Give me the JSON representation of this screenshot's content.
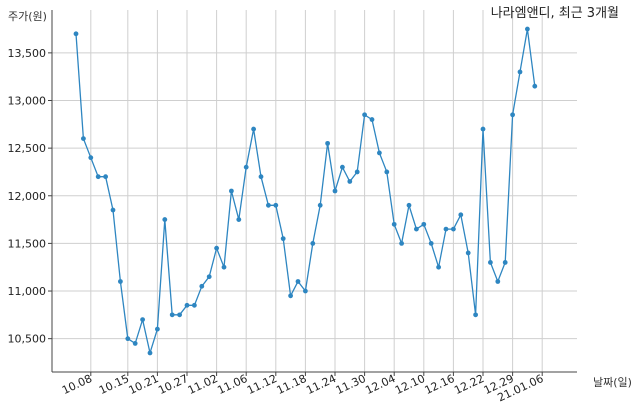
{
  "chart_data": {
    "type": "line",
    "title": "나라엠앤디, 최근 3개월",
    "ylabel": "주가(원)",
    "xlabel": "날짜(일)",
    "ylim": [
      10150,
      13950
    ],
    "yticks": [
      10500,
      11000,
      11500,
      12000,
      12500,
      13000,
      13500
    ],
    "ytick_labels": [
      "10,500",
      "11,000",
      "11,500",
      "12,000",
      "12,500",
      "13,000",
      "13,500"
    ],
    "xtick_labels": [
      "10.08",
      "10.15",
      "10.21",
      "10.27",
      "11.02",
      "11.06",
      "11.12",
      "11.18",
      "11.24",
      "11.30",
      "12.04",
      "12.10",
      "12.16",
      "12.22",
      "12.29",
      "21.01.06"
    ],
    "xtick_index": [
      2,
      7,
      11,
      15,
      19,
      23,
      27,
      31,
      35,
      39,
      43,
      47,
      51,
      55,
      59,
      63
    ],
    "grid": true,
    "line_color": "#2e86c1",
    "series": [
      {
        "values": [
          13700,
          12600,
          12400,
          12200,
          12200,
          11850,
          11100,
          10500,
          10450,
          10700,
          10350,
          10600,
          11750,
          10750,
          10750,
          10850,
          10850,
          11050,
          11150,
          11450,
          11250,
          12050,
          11750,
          12300,
          12700,
          12200,
          11900,
          11900,
          11550,
          10950,
          11100,
          11000,
          11500,
          11900,
          12550,
          12050,
          12300,
          12150,
          12250,
          12850,
          12800,
          12450,
          12250,
          11700,
          11500,
          11900,
          11650,
          11700,
          11500,
          11250,
          11650,
          11650,
          11800,
          11400,
          10750,
          12700,
          11300,
          11100,
          11300,
          12850,
          13300,
          13750,
          13150
        ]
      }
    ]
  }
}
